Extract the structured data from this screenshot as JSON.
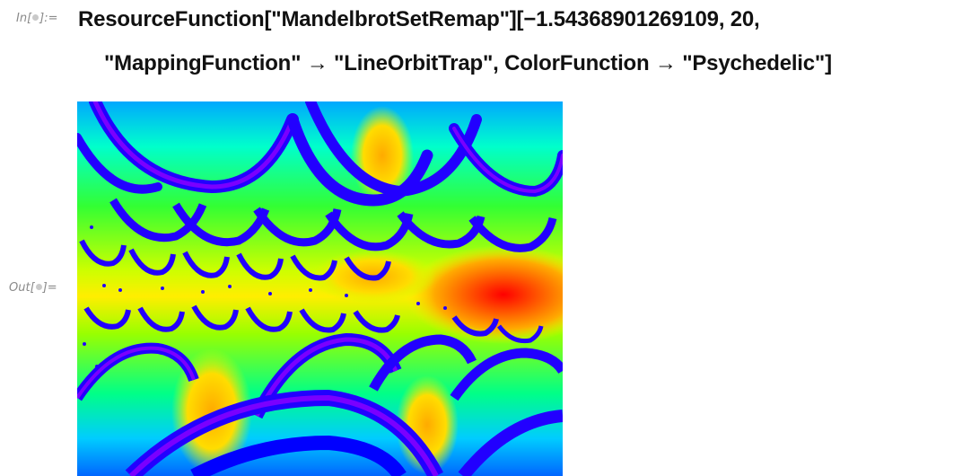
{
  "input_cell": {
    "label_prefix": "In[",
    "label_suffix": "]:=",
    "code_line_1": "ResourceFunction[\"MandelbrotSetRemap\"][−1.54368901269109, 20,",
    "code_line_2": "\"MappingFunction\" → \"LineOrbitTrap\", ColorFunction → \"Psychedelic\"]"
  },
  "output_cell": {
    "label_prefix": "Out[",
    "label_suffix": "]=",
    "image_semantic": "psychedelic-mandelbrot-fractal-image"
  },
  "colors": {
    "label_gray": "#8a8a8a",
    "code_text": "#111111",
    "palette": [
      "#0000ff",
      "#00a8ff",
      "#00ffcc",
      "#33ff33",
      "#ccff00",
      "#ffee00",
      "#ffaa00",
      "#ff5500",
      "#ff0000",
      "#7a00ff"
    ]
  }
}
